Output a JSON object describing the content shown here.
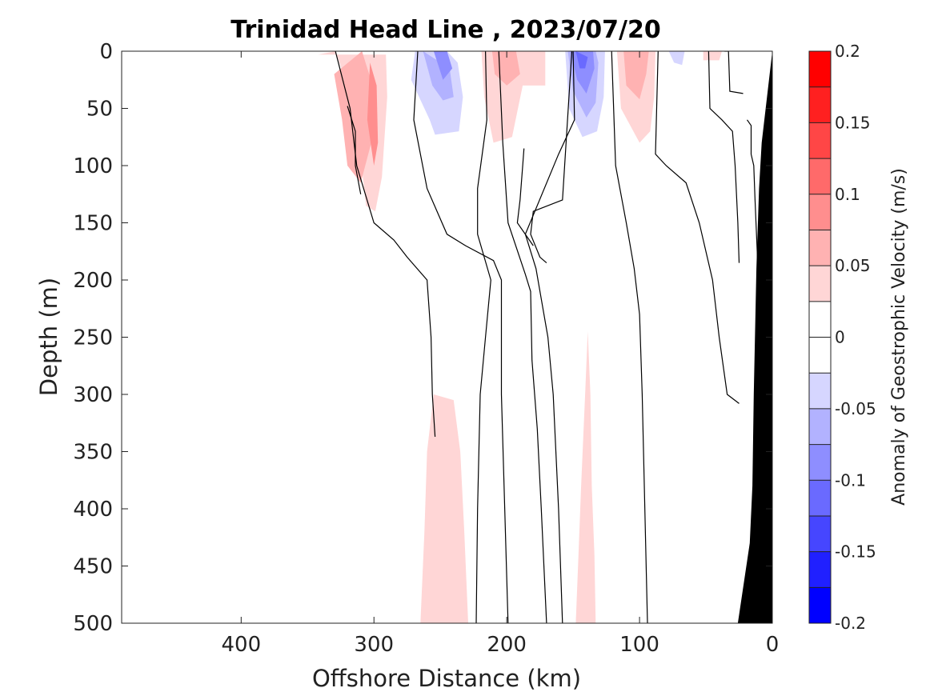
{
  "chart_data": {
    "type": "heatmap",
    "title": "Trinidad Head Line , 2023/07/20",
    "xlabel": "Offshore Distance (km)",
    "ylabel": "Depth (m)",
    "xlim": [
      490,
      0
    ],
    "ylim": [
      0,
      500
    ],
    "x_ticks": [
      {
        "value": 400,
        "label": "400"
      },
      {
        "value": 300,
        "label": "300"
      },
      {
        "value": 200,
        "label": "200"
      },
      {
        "value": 100,
        "label": "100"
      },
      {
        "value": 0,
        "label": "0"
      }
    ],
    "y_ticks": [
      {
        "value": 0,
        "label": "0"
      },
      {
        "value": 50,
        "label": "50"
      },
      {
        "value": 100,
        "label": "100"
      },
      {
        "value": 150,
        "label": "150"
      },
      {
        "value": 200,
        "label": "200"
      },
      {
        "value": 250,
        "label": "250"
      },
      {
        "value": 300,
        "label": "300"
      },
      {
        "value": 350,
        "label": "350"
      },
      {
        "value": 400,
        "label": "400"
      },
      {
        "value": 450,
        "label": "450"
      },
      {
        "value": 500,
        "label": "500"
      }
    ],
    "colorbar": {
      "label": "Anomaly of Geostrophic Velocity (m/s)",
      "range": [
        -0.2,
        0.2
      ],
      "levels": [
        -0.2,
        -0.175,
        -0.15,
        -0.125,
        -0.1,
        -0.075,
        -0.05,
        -0.025,
        0,
        0.025,
        0.05,
        0.075,
        0.1,
        0.125,
        0.15,
        0.175,
        0.2
      ],
      "colors": [
        "#0000ff",
        "#2020ff",
        "#4646ff",
        "#6a6aff",
        "#8e8eff",
        "#b2b2ff",
        "#d6d6ff",
        "#ffffff",
        "#ffffff",
        "#ffd6d6",
        "#ffb2b2",
        "#ff8e8e",
        "#ff6a6a",
        "#ff4646",
        "#ff2020",
        "#ff0000"
      ],
      "tick_labels": [
        {
          "value": 0.2,
          "label": "0.2"
        },
        {
          "value": 0.15,
          "label": "0.15"
        },
        {
          "value": 0.1,
          "label": "0.1"
        },
        {
          "value": 0.05,
          "label": "0.05"
        },
        {
          "value": 0,
          "label": "0"
        },
        {
          "value": -0.05,
          "label": "-0.05"
        },
        {
          "value": -0.1,
          "label": "-0.1"
        },
        {
          "value": -0.15,
          "label": "-0.15"
        },
        {
          "value": -0.2,
          "label": "-0.2"
        }
      ]
    },
    "bathymetry_color": "#000000",
    "bathymetry": [
      [
        0,
        0
      ],
      [
        8,
        80
      ],
      [
        10,
        120
      ],
      [
        12,
        190
      ],
      [
        14,
        300
      ],
      [
        15,
        380
      ],
      [
        17,
        430
      ],
      [
        26,
        500
      ],
      [
        0,
        500
      ]
    ],
    "anomaly_patches": [
      {
        "value": -0.025,
        "points": [
          [
            343,
            72
          ],
          [
            344,
            90
          ],
          [
            342,
            88
          ]
        ]
      },
      {
        "value": 0.025,
        "points": [
          [
            342,
            3
          ],
          [
            329,
            0
          ],
          [
            317,
            40
          ],
          [
            310,
            93
          ],
          [
            306,
            135
          ],
          [
            299,
            140
          ],
          [
            294,
            110
          ],
          [
            290,
            40
          ],
          [
            291,
            3
          ]
        ]
      },
      {
        "value": 0.05,
        "points": [
          [
            330,
            20
          ],
          [
            324,
            60
          ],
          [
            320,
            100
          ],
          [
            310,
            115
          ],
          [
            302,
            80
          ],
          [
            301,
            30
          ],
          [
            309,
            0
          ]
        ]
      },
      {
        "value": 0.075,
        "points": [
          [
            305,
            60
          ],
          [
            300,
            100
          ],
          [
            297,
            80
          ],
          [
            298,
            30
          ],
          [
            303,
            10
          ]
        ]
      },
      {
        "value": -0.025,
        "points": [
          [
            276,
            0
          ],
          [
            284,
            0
          ],
          [
            276,
            80
          ],
          [
            266,
            110
          ],
          [
            254,
            138
          ],
          [
            239,
            138
          ],
          [
            232,
            115
          ],
          [
            230,
            80
          ],
          [
            225,
            40
          ],
          [
            233,
            0
          ]
        ]
      },
      {
        "value": -0.05,
        "points": [
          [
            269,
            0
          ],
          [
            272,
            25
          ],
          [
            258,
            60
          ],
          [
            254,
            73
          ],
          [
            236,
            70
          ],
          [
            233,
            40
          ],
          [
            237,
            10
          ],
          [
            245,
            0
          ]
        ]
      },
      {
        "value": -0.075,
        "points": [
          [
            263,
            0
          ],
          [
            256,
            30
          ],
          [
            248,
            43
          ],
          [
            240,
            40
          ],
          [
            243,
            15
          ]
        ]
      },
      {
        "value": -0.1,
        "points": [
          [
            255,
            0
          ],
          [
            248,
            25
          ],
          [
            241,
            15
          ],
          [
            245,
            0
          ]
        ]
      },
      {
        "value": 0.025,
        "points": [
          [
            219,
            0
          ],
          [
            217,
            40
          ],
          [
            210,
            80
          ],
          [
            196,
            75
          ],
          [
            188,
            30
          ],
          [
            171,
            30
          ],
          [
            171,
            0
          ]
        ]
      },
      {
        "value": 0.05,
        "points": [
          [
            211,
            0
          ],
          [
            209,
            20
          ],
          [
            200,
            30
          ],
          [
            190,
            20
          ],
          [
            193,
            0
          ]
        ]
      },
      {
        "value": -0.025,
        "points": [
          [
            158,
            0
          ],
          [
            155,
            60
          ],
          [
            152,
            85
          ],
          [
            140,
            92
          ],
          [
            126,
            80
          ],
          [
            124,
            60
          ],
          [
            123,
            0
          ]
        ]
      },
      {
        "value": -0.05,
        "points": [
          [
            156,
            0
          ],
          [
            153,
            50
          ],
          [
            143,
            75
          ],
          [
            132,
            70
          ],
          [
            127,
            40
          ],
          [
            126,
            0
          ]
        ]
      },
      {
        "value": -0.075,
        "points": [
          [
            154,
            0
          ],
          [
            150,
            35
          ],
          [
            140,
            58
          ],
          [
            133,
            45
          ],
          [
            131,
            10
          ],
          [
            133,
            0
          ]
        ]
      },
      {
        "value": -0.1,
        "points": [
          [
            152,
            0
          ],
          [
            147,
            25
          ],
          [
            140,
            37
          ],
          [
            134,
            15
          ],
          [
            135,
            0
          ]
        ]
      },
      {
        "value": -0.125,
        "points": [
          [
            148,
            0
          ],
          [
            145,
            15
          ],
          [
            141,
            15
          ],
          [
            139,
            5
          ]
        ]
      },
      {
        "value": 0.025,
        "points": [
          [
            117,
            0
          ],
          [
            114,
            50
          ],
          [
            100,
            80
          ],
          [
            92,
            70
          ],
          [
            89,
            40
          ],
          [
            88,
            0
          ]
        ]
      },
      {
        "value": 0.05,
        "points": [
          [
            112,
            0
          ],
          [
            110,
            30
          ],
          [
            100,
            42
          ],
          [
            95,
            20
          ],
          [
            93,
            0
          ]
        ]
      },
      {
        "value": -0.025,
        "points": [
          [
            82,
            0
          ],
          [
            80,
            40
          ],
          [
            70,
            65
          ],
          [
            62,
            50
          ],
          [
            59,
            10
          ],
          [
            58,
            0
          ]
        ]
      },
      {
        "value": -0.05,
        "points": [
          [
            78,
            0
          ],
          [
            74,
            10
          ],
          [
            68,
            12
          ],
          [
            66,
            0
          ]
        ]
      },
      {
        "value": 0.025,
        "points": [
          [
            52,
            0
          ],
          [
            52,
            8
          ],
          [
            40,
            8
          ],
          [
            38,
            0
          ]
        ]
      },
      {
        "value": -0.025,
        "points": [
          [
            295,
            290
          ],
          [
            290,
            300
          ],
          [
            286,
            340
          ],
          [
            284,
            400
          ],
          [
            282,
            500
          ],
          [
            305,
            500
          ],
          [
            304,
            450
          ],
          [
            301,
            400
          ],
          [
            299,
            350
          ]
        ]
      },
      {
        "value": 0.025,
        "points": [
          [
            255,
            300
          ],
          [
            240,
            305
          ],
          [
            235,
            350
          ],
          [
            232,
            420
          ],
          [
            229,
            500
          ],
          [
            265,
            500
          ],
          [
            262,
            420
          ],
          [
            260,
            350
          ]
        ]
      },
      {
        "value": -0.025,
        "points": [
          [
            211,
            450
          ],
          [
            199,
            460
          ],
          [
            197,
            500
          ],
          [
            213,
            500
          ]
        ]
      },
      {
        "value": 0.025,
        "points": [
          [
            139,
            245
          ],
          [
            141,
            300
          ],
          [
            144,
            380
          ],
          [
            146,
            440
          ],
          [
            148,
            500
          ],
          [
            133,
            500
          ],
          [
            134,
            440
          ],
          [
            136,
            380
          ],
          [
            137,
            300
          ]
        ]
      }
    ],
    "zero_contours": [
      [
        [
          320,
          48
        ],
        [
          314,
          70
        ],
        [
          314,
          100
        ],
        [
          310,
          125
        ]
      ],
      [
        [
          329,
          0
        ],
        [
          318,
          50
        ],
        [
          313,
          100
        ],
        [
          300,
          150
        ],
        [
          285,
          165
        ],
        [
          275,
          180
        ],
        [
          260,
          200
        ],
        [
          257,
          250
        ],
        [
          256,
          300
        ],
        [
          254,
          337
        ]
      ],
      [
        [
          267,
          0
        ],
        [
          270,
          60
        ],
        [
          260,
          120
        ],
        [
          245,
          160
        ],
        [
          231,
          170
        ],
        [
          210,
          183
        ],
        [
          204,
          200
        ],
        [
          204,
          300
        ],
        [
          199,
          500
        ]
      ],
      [
        [
          216,
          0
        ],
        [
          215,
          60
        ],
        [
          222,
          120
        ],
        [
          222,
          160
        ],
        [
          212,
          200
        ],
        [
          216,
          250
        ],
        [
          220,
          300
        ],
        [
          222,
          400
        ],
        [
          223,
          500
        ]
      ],
      [
        [
          206,
          0
        ],
        [
          203,
          80
        ],
        [
          199,
          150
        ],
        [
          186,
          195
        ],
        [
          182,
          210
        ],
        [
          181,
          270
        ],
        [
          177,
          330
        ],
        [
          174,
          400
        ],
        [
          170,
          500
        ]
      ],
      [
        [
          150,
          0
        ],
        [
          149,
          60
        ],
        [
          161,
          90
        ],
        [
          186,
          160
        ],
        [
          178,
          190
        ],
        [
          169,
          250
        ],
        [
          165,
          300
        ],
        [
          161,
          400
        ],
        [
          158,
          500
        ]
      ],
      [
        [
          151,
          0
        ],
        [
          158,
          130
        ],
        [
          180,
          140
        ],
        [
          182,
          160
        ],
        [
          175,
          180
        ],
        [
          170,
          185
        ]
      ],
      [
        [
          180,
          170
        ],
        [
          192,
          150
        ],
        [
          190,
          130
        ],
        [
          188,
          100
        ],
        [
          187,
          85
        ]
      ],
      [
        [
          121,
          0
        ],
        [
          118,
          100
        ],
        [
          110,
          150
        ],
        [
          104,
          190
        ],
        [
          100,
          230
        ],
        [
          98,
          300
        ],
        [
          96,
          400
        ],
        [
          94,
          500
        ]
      ],
      [
        [
          86,
          0
        ],
        [
          88,
          90
        ],
        [
          80,
          100
        ],
        [
          65,
          115
        ],
        [
          55,
          150
        ],
        [
          45,
          200
        ],
        [
          40,
          250
        ],
        [
          34,
          300
        ],
        [
          25,
          308
        ]
      ],
      [
        [
          48,
          0
        ],
        [
          47,
          50
        ],
        [
          38,
          60
        ],
        [
          30,
          70
        ],
        [
          28,
          100
        ],
        [
          26,
          150
        ],
        [
          25,
          185
        ]
      ],
      [
        [
          19,
          60
        ],
        [
          16,
          65
        ],
        [
          16,
          90
        ],
        [
          14,
          100
        ],
        [
          13,
          130
        ],
        [
          11,
          185
        ]
      ],
      [
        [
          36,
          0
        ],
        [
          33,
          0
        ],
        [
          32,
          35
        ],
        [
          22,
          37
        ]
      ]
    ]
  }
}
